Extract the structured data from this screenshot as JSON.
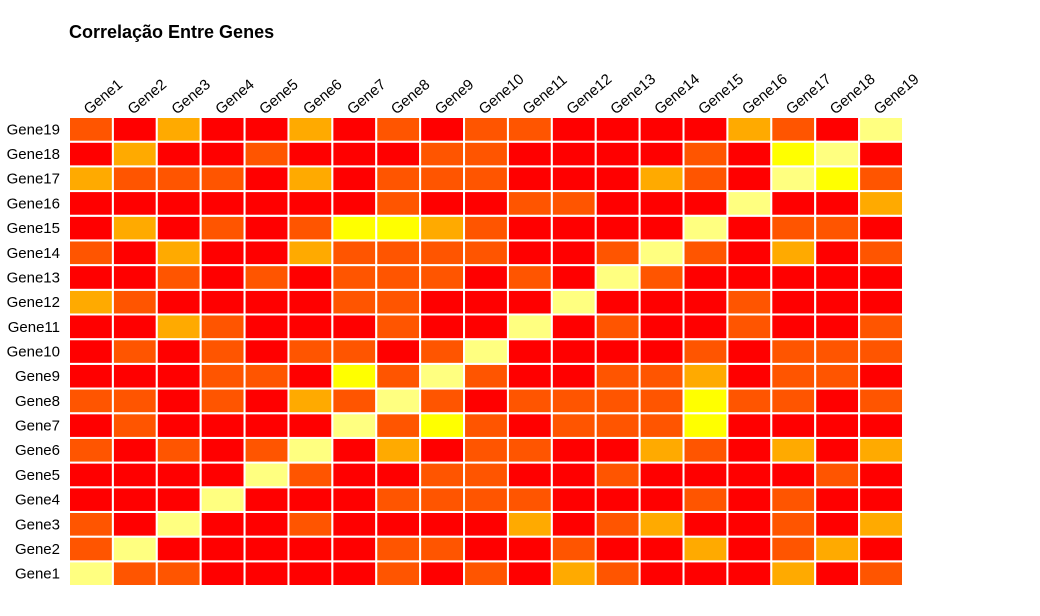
{
  "chart_data": {
    "type": "heatmap",
    "title": "Correlação Entre Genes",
    "columns": [
      "Gene1",
      "Gene2",
      "Gene3",
      "Gene4",
      "Gene5",
      "Gene6",
      "Gene7",
      "Gene8",
      "Gene9",
      "Gene10",
      "Gene11",
      "Gene12",
      "Gene13",
      "Gene14",
      "Gene15",
      "Gene16",
      "Gene17",
      "Gene18",
      "Gene19"
    ],
    "rows": [
      "Gene1",
      "Gene2",
      "Gene3",
      "Gene4",
      "Gene5",
      "Gene6",
      "Gene7",
      "Gene8",
      "Gene9",
      "Gene10",
      "Gene11",
      "Gene12",
      "Gene13",
      "Gene14",
      "Gene15",
      "Gene16",
      "Gene17",
      "Gene18",
      "Gene19"
    ],
    "color_levels": [
      "#ff0000",
      "#ff5500",
      "#ffaa00",
      "#ffff00",
      "#ffff80"
    ],
    "level_matrix": [
      [
        4,
        1,
        1,
        0,
        0,
        0,
        0,
        1,
        0,
        1,
        0,
        2,
        1,
        0,
        0,
        0,
        2,
        0,
        1
      ],
      [
        1,
        4,
        0,
        0,
        0,
        0,
        0,
        1,
        1,
        0,
        0,
        1,
        0,
        0,
        2,
        0,
        1,
        2,
        0
      ],
      [
        1,
        0,
        4,
        0,
        0,
        1,
        0,
        0,
        0,
        0,
        2,
        0,
        1,
        2,
        0,
        0,
        1,
        0,
        2
      ],
      [
        0,
        0,
        0,
        4,
        0,
        0,
        0,
        1,
        1,
        1,
        1,
        0,
        0,
        0,
        1,
        0,
        1,
        0,
        0
      ],
      [
        0,
        0,
        0,
        0,
        4,
        1,
        0,
        0,
        1,
        1,
        0,
        0,
        1,
        0,
        0,
        0,
        0,
        1,
        0
      ],
      [
        1,
        0,
        1,
        0,
        1,
        4,
        0,
        2,
        0,
        1,
        1,
        0,
        0,
        2,
        1,
        0,
        2,
        0,
        2
      ],
      [
        0,
        1,
        0,
        0,
        0,
        0,
        4,
        1,
        3,
        1,
        0,
        1,
        1,
        1,
        3,
        0,
        0,
        0,
        0
      ],
      [
        1,
        1,
        0,
        1,
        0,
        2,
        1,
        4,
        1,
        0,
        1,
        1,
        1,
        1,
        3,
        1,
        1,
        0,
        1
      ],
      [
        0,
        0,
        0,
        1,
        1,
        0,
        3,
        1,
        4,
        1,
        0,
        0,
        1,
        1,
        2,
        0,
        1,
        1,
        0
      ],
      [
        0,
        1,
        0,
        1,
        0,
        1,
        1,
        0,
        1,
        4,
        0,
        0,
        0,
        0,
        1,
        0,
        1,
        1,
        1
      ],
      [
        0,
        0,
        2,
        1,
        0,
        0,
        0,
        1,
        0,
        0,
        4,
        0,
        1,
        0,
        0,
        1,
        0,
        0,
        1
      ],
      [
        2,
        1,
        0,
        0,
        0,
        0,
        1,
        1,
        0,
        0,
        0,
        4,
        0,
        0,
        0,
        1,
        0,
        0,
        0
      ],
      [
        0,
        0,
        1,
        0,
        1,
        0,
        1,
        1,
        1,
        0,
        1,
        0,
        4,
        1,
        0,
        0,
        0,
        0,
        0
      ],
      [
        1,
        0,
        2,
        0,
        0,
        2,
        1,
        1,
        1,
        1,
        0,
        0,
        1,
        4,
        1,
        0,
        2,
        0,
        1
      ],
      [
        0,
        2,
        0,
        1,
        0,
        1,
        3,
        3,
        2,
        1,
        0,
        0,
        0,
        0,
        4,
        0,
        1,
        1,
        0
      ],
      [
        0,
        0,
        0,
        0,
        0,
        0,
        0,
        1,
        0,
        0,
        1,
        1,
        0,
        0,
        0,
        4,
        0,
        0,
        2
      ],
      [
        2,
        1,
        1,
        1,
        0,
        2,
        0,
        1,
        1,
        1,
        0,
        0,
        0,
        2,
        1,
        0,
        4,
        3,
        1
      ],
      [
        0,
        2,
        0,
        0,
        1,
        0,
        0,
        0,
        1,
        1,
        0,
        0,
        0,
        0,
        1,
        0,
        3,
        4,
        0
      ],
      [
        1,
        0,
        2,
        0,
        0,
        2,
        0,
        1,
        0,
        1,
        1,
        0,
        0,
        0,
        0,
        2,
        1,
        0,
        4
      ]
    ]
  }
}
